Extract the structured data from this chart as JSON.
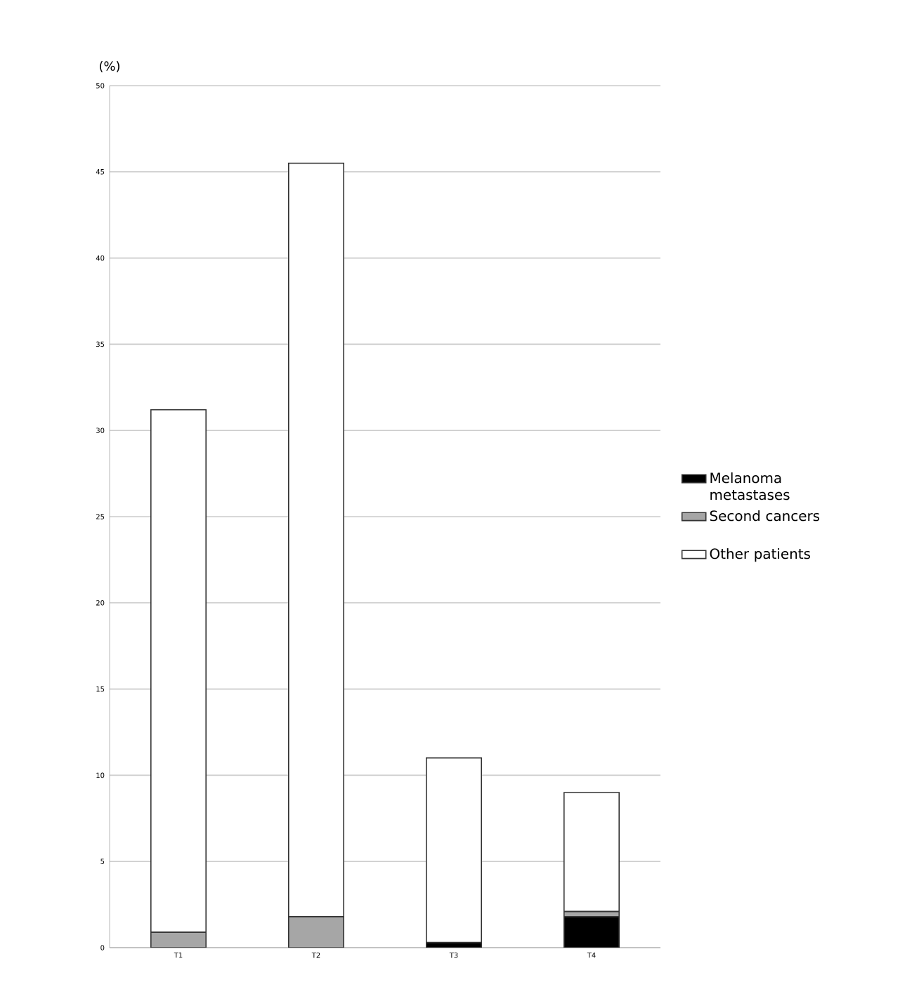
{
  "chart_data": {
    "type": "bar",
    "stacked": true,
    "ylabel": "(%)",
    "categories": [
      "T1",
      "T2",
      "T3",
      "T4"
    ],
    "series": [
      {
        "name": "Melanoma metastases",
        "color": "#000000",
        "values": [
          null,
          null,
          0.3,
          1.8
        ]
      },
      {
        "name": "Second cancers",
        "color": "#a6a6a6",
        "values": [
          0.9,
          1.8,
          null,
          0.3
        ]
      },
      {
        "name": "Other patients",
        "color": "#ffffff",
        "values": [
          30.3,
          43.7,
          10.7,
          6.9
        ]
      }
    ],
    "ylim": [
      0,
      50
    ],
    "yticks": [
      0,
      5,
      10,
      15,
      20,
      25,
      30,
      35,
      40,
      45,
      50
    ],
    "grid": "y",
    "legend": "right"
  }
}
